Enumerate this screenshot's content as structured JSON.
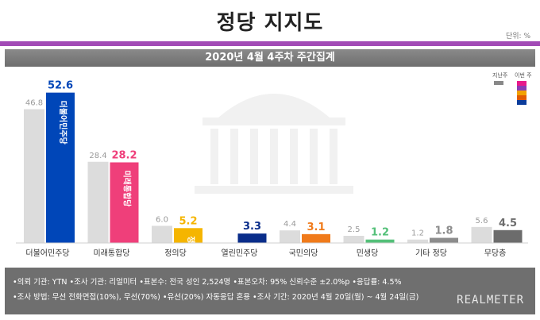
{
  "header": {
    "title": "정당 지지도",
    "unit": "단위: %",
    "subtitle": "2020년 4월 4주차 주간집계"
  },
  "legend": {
    "previous_label": "지난주",
    "current_label": "이번 주",
    "colors": [
      "#e8198b",
      "#8b3bb5",
      "#f2a100",
      "#e25b00",
      "#0b3c9b"
    ]
  },
  "chart_data": {
    "type": "bar",
    "title": "정당 지지도",
    "subtitle": "2020년 4월 4주차 주간집계",
    "categories": [
      "더불어민주당",
      "미래통합당",
      "정의당",
      "열린민주당",
      "국민의당",
      "민생당",
      "기타 정당",
      "무당층"
    ],
    "series": [
      {
        "name": "지난주",
        "values": [
          46.8,
          28.4,
          6.0,
          null,
          4.4,
          2.5,
          1.2,
          5.6
        ]
      },
      {
        "name": "이번 주",
        "values": [
          52.6,
          28.2,
          5.2,
          3.3,
          3.1,
          1.2,
          1.8,
          4.5
        ]
      }
    ],
    "bar_labels": [
      {
        "prev": "46.8",
        "cur": "52.6"
      },
      {
        "prev": "28.4",
        "cur": "28.2"
      },
      {
        "prev": "6.0",
        "cur": "5.2"
      },
      {
        "prev": "",
        "cur": "3.3"
      },
      {
        "prev": "4.4",
        "cur": "3.1"
      },
      {
        "prev": "2.5",
        "cur": "1.2"
      },
      {
        "prev": "1.2",
        "cur": "1.8"
      },
      {
        "prev": "5.6",
        "cur": "4.5"
      }
    ],
    "colors": {
      "previous": "#dcdcdc",
      "current": [
        "#0046b8",
        "#ef3f7a",
        "#f5b500",
        "#0a2d8a",
        "#f07a1a",
        "#54c079",
        "#8c8c8c",
        "#6c6c6c"
      ],
      "value_text": [
        "#0046b8",
        "#ef3f7a",
        "#f5b500",
        "#0a2d8a",
        "#f07a1a",
        "#54c079",
        "#8c8c8c",
        "#6c6c6c"
      ]
    },
    "bar_inner_labels": [
      "더불어민주당",
      "미래통합당",
      "정의당",
      "",
      "",
      "",
      "",
      ""
    ],
    "ylim": [
      0,
      55
    ],
    "unit": "%",
    "grid": false,
    "legend_position": "top-right"
  },
  "notes": {
    "line1": "•의뢰 기관: YTN •조사 기관: 리얼미터 •표본수: 전국 성인 2,524명 •표본오차: 95% 신뢰수준 ±2.0%p •응답률: 4.5%",
    "line2": "•조사 방법: 무선 전화면접(10%), 무선(70%) •유선(20%) 자동응답 혼용 •조사 기간: 2020년 4월 20일(월) ~ 4월 24일(금)",
    "brand": "REALMETER"
  }
}
